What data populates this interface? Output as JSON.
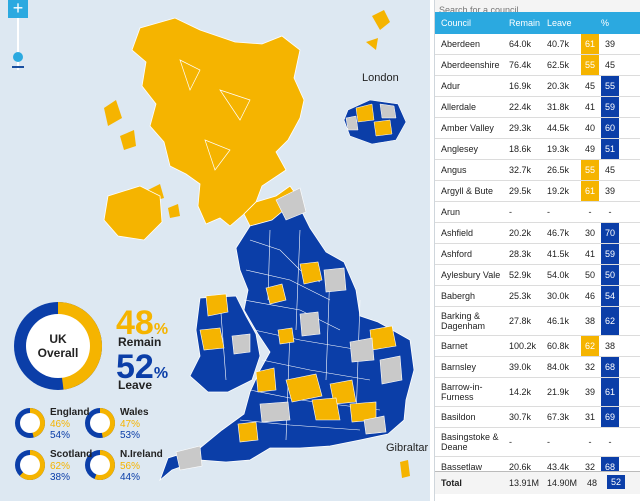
{
  "zoom": {
    "plus_label": "+"
  },
  "insets": {
    "london": "London",
    "gibraltar": "Gibraltar"
  },
  "overall": {
    "title_line1": "UK",
    "title_line2": "Overall",
    "remain_pct": "48",
    "leave_pct": "52",
    "pct_sign": "%",
    "remain_label": "Remain",
    "leave_label": "Leave",
    "remain_fraction": 0.48
  },
  "nations": [
    {
      "name": "England",
      "remain": "46%",
      "leave": "54%",
      "remain_fraction": 0.46
    },
    {
      "name": "Wales",
      "remain": "47%",
      "leave": "53%",
      "remain_fraction": 0.47
    },
    {
      "name": "Scotland",
      "remain": "62%",
      "leave": "38%",
      "remain_fraction": 0.62
    },
    {
      "name": "N.Ireland",
      "remain": "56%",
      "leave": "44%",
      "remain_fraction": 0.56
    }
  ],
  "colors": {
    "remain": "#f5b400",
    "leave": "#0b3ea8",
    "undeclared": "#c9c9c9",
    "header": "#2ba9e0"
  },
  "table": {
    "search_placeholder": "Search for a council...",
    "headers": {
      "council": "Council",
      "remain": "Remain",
      "leave": "Leave",
      "pct": "%"
    },
    "rows": [
      {
        "council": "Aberdeen",
        "remain": "64.0k",
        "leave": "40.7k",
        "rp": "61",
        "lp": "39",
        "winner": "remain"
      },
      {
        "council": "Aberdeenshire",
        "remain": "76.4k",
        "leave": "62.5k",
        "rp": "55",
        "lp": "45",
        "winner": "remain"
      },
      {
        "council": "Adur",
        "remain": "16.9k",
        "leave": "20.3k",
        "rp": "45",
        "lp": "55",
        "winner": "leave"
      },
      {
        "council": "Allerdale",
        "remain": "22.4k",
        "leave": "31.8k",
        "rp": "41",
        "lp": "59",
        "winner": "leave"
      },
      {
        "council": "Amber Valley",
        "remain": "29.3k",
        "leave": "44.5k",
        "rp": "40",
        "lp": "60",
        "winner": "leave"
      },
      {
        "council": "Anglesey",
        "remain": "18.6k",
        "leave": "19.3k",
        "rp": "49",
        "lp": "51",
        "winner": "leave"
      },
      {
        "council": "Angus",
        "remain": "32.7k",
        "leave": "26.5k",
        "rp": "55",
        "lp": "45",
        "winner": "remain"
      },
      {
        "council": "Argyll & Bute",
        "remain": "29.5k",
        "leave": "19.2k",
        "rp": "61",
        "lp": "39",
        "winner": "remain"
      },
      {
        "council": "Arun",
        "remain": "-",
        "leave": "-",
        "rp": "-",
        "lp": "-",
        "winner": "none"
      },
      {
        "council": "Ashfield",
        "remain": "20.2k",
        "leave": "46.7k",
        "rp": "30",
        "lp": "70",
        "winner": "leave"
      },
      {
        "council": "Ashford",
        "remain": "28.3k",
        "leave": "41.5k",
        "rp": "41",
        "lp": "59",
        "winner": "leave"
      },
      {
        "council": "Aylesbury Vale",
        "remain": "52.9k",
        "leave": "54.0k",
        "rp": "50",
        "lp": "50",
        "winner": "leave"
      },
      {
        "council": "Babergh",
        "remain": "25.3k",
        "leave": "30.0k",
        "rp": "46",
        "lp": "54",
        "winner": "leave"
      },
      {
        "council": "Barking & Dagenham",
        "remain": "27.8k",
        "leave": "46.1k",
        "rp": "38",
        "lp": "62",
        "winner": "leave"
      },
      {
        "council": "Barnet",
        "remain": "100.2k",
        "leave": "60.8k",
        "rp": "62",
        "lp": "38",
        "winner": "remain"
      },
      {
        "council": "Barnsley",
        "remain": "39.0k",
        "leave": "84.0k",
        "rp": "32",
        "lp": "68",
        "winner": "leave"
      },
      {
        "council": "Barrow-in-Furness",
        "remain": "14.2k",
        "leave": "21.9k",
        "rp": "39",
        "lp": "61",
        "winner": "leave"
      },
      {
        "council": "Basildon",
        "remain": "30.7k",
        "leave": "67.3k",
        "rp": "31",
        "lp": "69",
        "winner": "leave"
      },
      {
        "council": "Basingstoke & Deane",
        "remain": "-",
        "leave": "-",
        "rp": "-",
        "lp": "-",
        "winner": "none"
      },
      {
        "council": "Bassetlaw",
        "remain": "20.6k",
        "leave": "43.4k",
        "rp": "32",
        "lp": "68",
        "winner": "leave"
      }
    ],
    "total": {
      "label": "Total",
      "remain": "13.91M",
      "leave": "14.90M",
      "rp": "48",
      "lp": "52"
    }
  }
}
